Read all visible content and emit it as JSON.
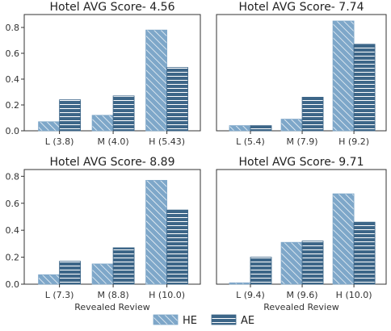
{
  "colors": {
    "HE": "#7ea7c9",
    "AE": "#3d6688"
  },
  "legend": [
    {
      "name": "HE",
      "pattern": "diagonal-hatch"
    },
    {
      "name": "AE",
      "pattern": "horizontal-hatch"
    }
  ],
  "chart_data": [
    {
      "type": "bar",
      "title": "Hotel AVG Score- 4.56",
      "categories": [
        "L (3.8)",
        "M (4.0)",
        "H (5.43)"
      ],
      "series": [
        {
          "name": "HE",
          "values": [
            0.07,
            0.12,
            0.78
          ]
        },
        {
          "name": "AE",
          "values": [
            0.24,
            0.27,
            0.49
          ]
        }
      ],
      "ylim": [
        0,
        0.9
      ],
      "yticks": [
        "0.0",
        "0.2",
        "0.4",
        "0.6",
        "0.8"
      ],
      "xlabel": ""
    },
    {
      "type": "bar",
      "title": "Hotel AVG Score- 7.74",
      "categories": [
        "L (5.4)",
        "M (7.9)",
        "H (9.2)"
      ],
      "series": [
        {
          "name": "HE",
          "values": [
            0.04,
            0.09,
            0.85
          ]
        },
        {
          "name": "AE",
          "values": [
            0.04,
            0.26,
            0.67
          ]
        }
      ],
      "ylim": [
        0,
        0.9
      ],
      "yticks": [],
      "xlabel": ""
    },
    {
      "type": "bar",
      "title": "Hotel AVG Score- 8.89",
      "categories": [
        "L (7.3)",
        "M (8.8)",
        "H (10.0)"
      ],
      "series": [
        {
          "name": "HE",
          "values": [
            0.07,
            0.15,
            0.77
          ]
        },
        {
          "name": "AE",
          "values": [
            0.17,
            0.27,
            0.55
          ]
        }
      ],
      "ylim": [
        0,
        0.85
      ],
      "yticks": [
        "0.0",
        "0.2",
        "0.4",
        "0.6",
        "0.8"
      ],
      "xlabel": "Revealed Review"
    },
    {
      "type": "bar",
      "title": "Hotel AVG Score- 9.71",
      "categories": [
        "L (9.4)",
        "M (9.6)",
        "H (10.0)"
      ],
      "series": [
        {
          "name": "HE",
          "values": [
            0.01,
            0.31,
            0.67
          ]
        },
        {
          "name": "AE",
          "values": [
            0.2,
            0.32,
            0.46
          ]
        }
      ],
      "ylim": [
        0,
        0.85
      ],
      "yticks": [],
      "xlabel": "Revealed Review"
    }
  ]
}
